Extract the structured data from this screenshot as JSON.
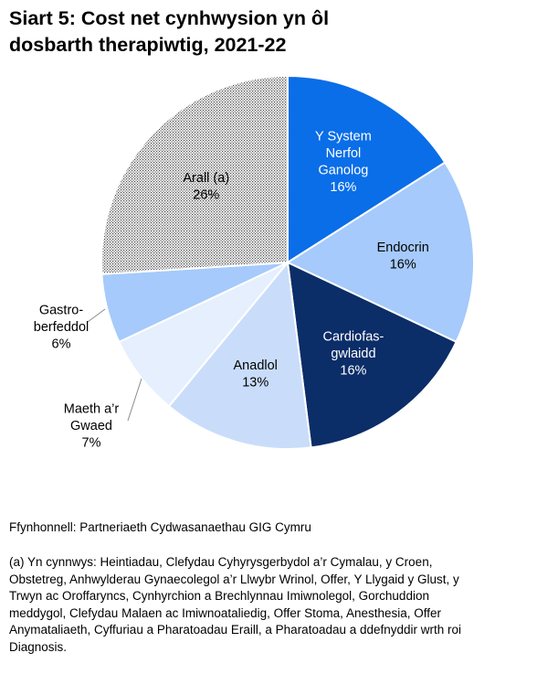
{
  "title_lines": [
    "Siart 5: Cost net cynhwysion yn ôl",
    "dosbarth therapiwtig, 2021-22"
  ],
  "chart_data": {
    "type": "pie",
    "title": "Siart 5: Cost net cynhwysion yn ôl dosbarth therapiwtig, 2021-22",
    "unit": "%",
    "slices": [
      {
        "label": "Y System Nerfol Ganolog",
        "label_lines": [
          "Y System",
          "Nerfol",
          "Ganolog"
        ],
        "value": 16,
        "value_label": "16%",
        "color": "#0a6ee8",
        "text_color": "#ffffff",
        "label_position": "inside"
      },
      {
        "label": "Endocrin",
        "label_lines": [
          "Endocrin"
        ],
        "value": 16,
        "value_label": "16%",
        "color": "#a5cafb",
        "text_color": "#000000",
        "label_position": "inside"
      },
      {
        "label": "Cardiofas-gwlaidd",
        "label_lines": [
          "Cardiofas-",
          "gwlaidd"
        ],
        "value": 16,
        "value_label": "16%",
        "color": "#0b2d68",
        "text_color": "#ffffff",
        "label_position": "inside"
      },
      {
        "label": "Anadlol",
        "label_lines": [
          "Anadlol"
        ],
        "value": 13,
        "value_label": "13%",
        "color": "#c9ddfa",
        "text_color": "#000000",
        "label_position": "inside"
      },
      {
        "label": "Maeth a’r Gwaed",
        "label_lines": [
          "Maeth a’r",
          "Gwaed"
        ],
        "value": 7,
        "value_label": "7%",
        "color": "#e5effd",
        "text_color": "#000000",
        "label_position": "outside"
      },
      {
        "label": "Gastro-berfeddol",
        "label_lines": [
          "Gastro-",
          "berfeddol"
        ],
        "value": 6,
        "value_label": "6%",
        "color": "#a5cafb",
        "text_color": "#000000",
        "label_position": "outside"
      },
      {
        "label": "Arall (a)",
        "label_lines": [
          "Arall (a)"
        ],
        "value": 26,
        "value_label": "26%",
        "color": "#ffffff",
        "text_color": "#000000",
        "label_position": "inside",
        "pattern": "dotted"
      }
    ],
    "start_angle_deg": 0,
    "direction": "clockwise",
    "legend": "none"
  },
  "source": "Ffynhonnell: Partneriaeth Cydwasanaethau GIG Cymru",
  "note_lines": [
    "(a) Yn cynnwys: Heintiadau, Clefydau Cyhyrysgerbydol a’r Cymalau, y Croen,",
    "Obstetreg, Anhwylderau Gynaecolegol a’r Llwybr Wrinol, Offer, Y Llygaid y Glust, y",
    "Trwyn ac Oroffaryncs, Cynhyrchion a Brechlynnau Imiwnolegol, Gorchuddion",
    "meddygol, Clefydau Malaen ac Imiwnoataliedig, Offer Stoma, Anesthesia, Offer",
    "Anymataliaeth, Cyffuriau a Pharatoadau Eraill, a Pharatoadau a ddefnyddir wrth roi",
    "Diagnosis."
  ]
}
